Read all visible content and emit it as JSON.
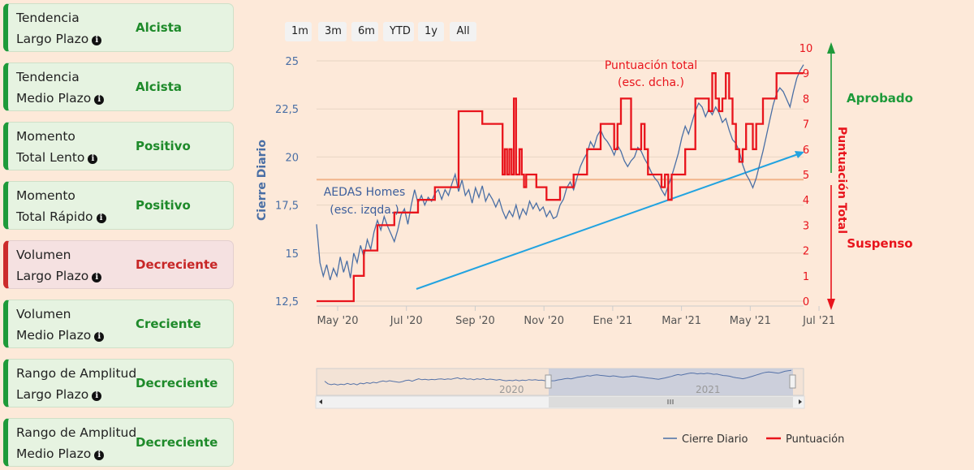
{
  "indicators": [
    {
      "line1": "Tendencia",
      "line2": "Largo Plazo",
      "status": "Alcista",
      "state": "good"
    },
    {
      "line1": "Tendencia",
      "line2": "Medio Plazo",
      "status": "Alcista",
      "state": "good"
    },
    {
      "line1": "Momento",
      "line2": "Total Lento",
      "status": "Positivo",
      "state": "good"
    },
    {
      "line1": "Momento",
      "line2": "Total Rápido",
      "status": "Positivo",
      "state": "good"
    },
    {
      "line1": "Volumen",
      "line2": "Largo Plazo",
      "status": "Decreciente",
      "state": "bad"
    },
    {
      "line1": "Volumen",
      "line2": "Medio Plazo",
      "status": "Creciente",
      "state": "good"
    },
    {
      "line1": "Rango de Amplitud",
      "line2": "Largo Plazo",
      "status": "Decreciente",
      "state": "good"
    },
    {
      "line1": "Rango de Amplitud",
      "line2": "Medio Plazo",
      "status": "Decreciente",
      "state": "good"
    }
  ],
  "info_icon_glyph": "i",
  "range_buttons": [
    "1m",
    "3m",
    "6m",
    "YTD",
    "1y",
    "All"
  ],
  "colors": {
    "price": "#4a6fa5",
    "score": "#e8141c",
    "trend": "#22a3e0",
    "threshold": "#f2b48a",
    "good": "#1e8a2a",
    "bad": "#c72626"
  },
  "chart_data": {
    "type": "line",
    "annotations": {
      "left_series_label": [
        "AEDAS Homes",
        "(esc. izqda.)"
      ],
      "right_series_label": [
        "Puntuación total",
        "(esc. dcha.)"
      ],
      "approved": "Aprobado",
      "failed": "Suspenso"
    },
    "ylabel_left": "Cierre Diario",
    "ylabel_right": "Puntuación Total",
    "ylim_left": [
      12.5,
      25
    ],
    "ylim_right": [
      0,
      10
    ],
    "yticks_left": [
      "12,5",
      "15",
      "17,5",
      "20",
      "22,5",
      "25"
    ],
    "yticks_right": [
      "0",
      "1",
      "2",
      "3",
      "4",
      "5",
      "6",
      "7",
      "8",
      "9",
      "10"
    ],
    "xticks": [
      "May '20",
      "Jul '20",
      "Sep '20",
      "Nov '20",
      "Ene '21",
      "Mar '21",
      "May '21",
      "Jul '21"
    ],
    "threshold_right": 4.8,
    "navigator_labels": [
      "2020",
      "2021"
    ],
    "legend": [
      "Cierre Diario",
      "Puntuación"
    ],
    "series": [
      {
        "name": "Cierre Diario",
        "axis": "left",
        "points": [
          [
            0,
            16.5
          ],
          [
            3,
            14.5
          ],
          [
            6,
            13.8
          ],
          [
            9,
            14.4
          ],
          [
            12,
            13.6
          ],
          [
            15,
            14.2
          ],
          [
            18,
            13.8
          ],
          [
            21,
            14.8
          ],
          [
            24,
            14.0
          ],
          [
            27,
            14.6
          ],
          [
            30,
            13.7
          ],
          [
            33,
            15.0
          ],
          [
            36,
            14.5
          ],
          [
            39,
            15.4
          ],
          [
            42,
            14.8
          ],
          [
            45,
            15.7
          ],
          [
            48,
            15.2
          ],
          [
            51,
            16.1
          ],
          [
            54,
            16.7
          ],
          [
            57,
            16.2
          ],
          [
            60,
            16.9
          ],
          [
            63,
            16.4
          ],
          [
            66,
            16.0
          ],
          [
            69,
            15.6
          ],
          [
            72,
            16.2
          ],
          [
            75,
            17.0
          ],
          [
            78,
            17.3
          ],
          [
            81,
            16.5
          ],
          [
            84,
            17.5
          ],
          [
            87,
            18.3
          ],
          [
            90,
            17.6
          ],
          [
            93,
            18.0
          ],
          [
            96,
            17.5
          ],
          [
            99,
            17.9
          ],
          [
            102,
            17.7
          ],
          [
            105,
            18.1
          ],
          [
            108,
            18.3
          ],
          [
            111,
            17.8
          ],
          [
            114,
            18.3
          ],
          [
            117,
            18.0
          ],
          [
            120,
            18.6
          ],
          [
            123,
            19.1
          ],
          [
            126,
            18.2
          ],
          [
            129,
            18.8
          ],
          [
            132,
            18.0
          ],
          [
            135,
            18.3
          ],
          [
            138,
            17.6
          ],
          [
            141,
            18.4
          ],
          [
            144,
            17.9
          ],
          [
            147,
            18.5
          ],
          [
            150,
            17.7
          ],
          [
            153,
            18.1
          ],
          [
            156,
            17.8
          ],
          [
            159,
            17.4
          ],
          [
            162,
            17.8
          ],
          [
            165,
            17.2
          ],
          [
            168,
            16.8
          ],
          [
            171,
            17.2
          ],
          [
            174,
            16.9
          ],
          [
            177,
            17.5
          ],
          [
            180,
            16.8
          ],
          [
            183,
            17.3
          ],
          [
            186,
            17.0
          ],
          [
            189,
            17.7
          ],
          [
            192,
            17.3
          ],
          [
            195,
            17.6
          ],
          [
            198,
            17.2
          ],
          [
            201,
            17.4
          ],
          [
            204,
            16.9
          ],
          [
            207,
            17.2
          ],
          [
            210,
            16.8
          ],
          [
            213,
            16.9
          ],
          [
            216,
            17.5
          ],
          [
            219,
            17.8
          ],
          [
            222,
            18.4
          ],
          [
            225,
            18.7
          ],
          [
            228,
            18.3
          ],
          [
            231,
            18.9
          ],
          [
            234,
            19.5
          ],
          [
            237,
            19.9
          ],
          [
            240,
            20.2
          ],
          [
            243,
            20.8
          ],
          [
            246,
            20.5
          ],
          [
            249,
            21.1
          ],
          [
            252,
            21.4
          ],
          [
            255,
            21.0
          ],
          [
            258,
            20.8
          ],
          [
            261,
            20.5
          ],
          [
            264,
            20.1
          ],
          [
            267,
            20.6
          ],
          [
            270,
            20.3
          ],
          [
            273,
            19.8
          ],
          [
            276,
            19.5
          ],
          [
            279,
            19.8
          ],
          [
            282,
            20.0
          ],
          [
            285,
            20.5
          ],
          [
            288,
            20.3
          ],
          [
            291,
            19.9
          ],
          [
            294,
            19.6
          ],
          [
            297,
            19.2
          ],
          [
            300,
            18.9
          ],
          [
            303,
            18.7
          ],
          [
            306,
            18.3
          ],
          [
            309,
            18.0
          ],
          [
            312,
            18.5
          ],
          [
            315,
            19.0
          ],
          [
            318,
            19.6
          ],
          [
            321,
            20.2
          ],
          [
            324,
            21.0
          ],
          [
            327,
            21.6
          ],
          [
            330,
            21.2
          ],
          [
            333,
            21.8
          ],
          [
            336,
            22.4
          ],
          [
            339,
            22.8
          ],
          [
            342,
            22.6
          ],
          [
            345,
            22.1
          ],
          [
            348,
            22.5
          ],
          [
            351,
            22.2
          ],
          [
            354,
            22.6
          ],
          [
            357,
            22.3
          ],
          [
            360,
            21.8
          ],
          [
            363,
            22.0
          ],
          [
            366,
            21.4
          ],
          [
            369,
            20.9
          ],
          [
            372,
            20.7
          ],
          [
            375,
            20.3
          ],
          [
            378,
            19.6
          ],
          [
            381,
            19.1
          ],
          [
            384,
            18.8
          ],
          [
            387,
            18.4
          ],
          [
            390,
            18.9
          ],
          [
            393,
            19.6
          ],
          [
            396,
            20.3
          ],
          [
            399,
            21.1
          ],
          [
            402,
            21.9
          ],
          [
            405,
            22.7
          ],
          [
            408,
            23.3
          ],
          [
            411,
            23.6
          ],
          [
            414,
            23.4
          ],
          [
            417,
            23.0
          ],
          [
            420,
            22.6
          ],
          [
            423,
            23.4
          ],
          [
            426,
            24.1
          ],
          [
            429,
            24.5
          ],
          [
            432,
            24.8
          ]
        ]
      },
      {
        "name": "Puntuación",
        "axis": "right",
        "points": [
          [
            0,
            0
          ],
          [
            21,
            0
          ],
          [
            33,
            0
          ],
          [
            33,
            1
          ],
          [
            42,
            1
          ],
          [
            42,
            2
          ],
          [
            54,
            2
          ],
          [
            54,
            3
          ],
          [
            69,
            3
          ],
          [
            69,
            3.5
          ],
          [
            90,
            3.5
          ],
          [
            90,
            4
          ],
          [
            105,
            4
          ],
          [
            105,
            4.5
          ],
          [
            126,
            4.5
          ],
          [
            126,
            7.5
          ],
          [
            147,
            7.5
          ],
          [
            147,
            7
          ],
          [
            165,
            7
          ],
          [
            165,
            5
          ],
          [
            167,
            5
          ],
          [
            167,
            6
          ],
          [
            169,
            6
          ],
          [
            169,
            5
          ],
          [
            171,
            5
          ],
          [
            171,
            6
          ],
          [
            173,
            6
          ],
          [
            173,
            5
          ],
          [
            175,
            5
          ],
          [
            175,
            8
          ],
          [
            177,
            8
          ],
          [
            177,
            5
          ],
          [
            180,
            5
          ],
          [
            180,
            6
          ],
          [
            182,
            6
          ],
          [
            182,
            5
          ],
          [
            184,
            5
          ],
          [
            184,
            4.5
          ],
          [
            186,
            4.5
          ],
          [
            186,
            5
          ],
          [
            195,
            5
          ],
          [
            195,
            4.5
          ],
          [
            204,
            4.5
          ],
          [
            204,
            4
          ],
          [
            216,
            4
          ],
          [
            216,
            4.5
          ],
          [
            228,
            4.5
          ],
          [
            228,
            5
          ],
          [
            240,
            5
          ],
          [
            240,
            6
          ],
          [
            252,
            6
          ],
          [
            252,
            7
          ],
          [
            264,
            7
          ],
          [
            264,
            6
          ],
          [
            267,
            6
          ],
          [
            267,
            7
          ],
          [
            270,
            7
          ],
          [
            270,
            8
          ],
          [
            279,
            8
          ],
          [
            279,
            6
          ],
          [
            288,
            6
          ],
          [
            288,
            7
          ],
          [
            291,
            7
          ],
          [
            291,
            6
          ],
          [
            294,
            6
          ],
          [
            294,
            5
          ],
          [
            306,
            5
          ],
          [
            306,
            4.5
          ],
          [
            309,
            4.5
          ],
          [
            309,
            5
          ],
          [
            312,
            5
          ],
          [
            312,
            4
          ],
          [
            315,
            4
          ],
          [
            315,
            5
          ],
          [
            327,
            5
          ],
          [
            327,
            6
          ],
          [
            336,
            6
          ],
          [
            336,
            8
          ],
          [
            348,
            8
          ],
          [
            348,
            7.5
          ],
          [
            351,
            7.5
          ],
          [
            351,
            9
          ],
          [
            354,
            9
          ],
          [
            354,
            8
          ],
          [
            357,
            8
          ],
          [
            357,
            7.5
          ],
          [
            360,
            7.5
          ],
          [
            360,
            8
          ],
          [
            363,
            8
          ],
          [
            363,
            9
          ],
          [
            366,
            9
          ],
          [
            366,
            8
          ],
          [
            369,
            8
          ],
          [
            369,
            7
          ],
          [
            372,
            7
          ],
          [
            372,
            6
          ],
          [
            375,
            6
          ],
          [
            375,
            5.5
          ],
          [
            378,
            5.5
          ],
          [
            378,
            6
          ],
          [
            381,
            6
          ],
          [
            381,
            7
          ],
          [
            387,
            7
          ],
          [
            387,
            6
          ],
          [
            390,
            6
          ],
          [
            390,
            7
          ],
          [
            396,
            7
          ],
          [
            396,
            8
          ],
          [
            408,
            8
          ],
          [
            408,
            9
          ],
          [
            432,
            9
          ]
        ]
      }
    ]
  }
}
